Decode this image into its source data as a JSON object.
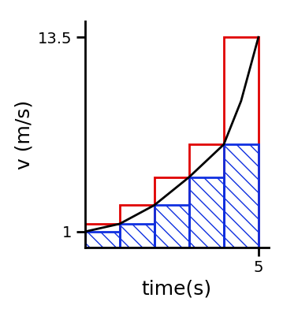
{
  "chart_data": {
    "type": "line",
    "xlabel": "time(s)",
    "ylabel": "v (m/s)",
    "xlim": [
      0,
      5.3
    ],
    "xticks": [
      5
    ],
    "ylim": [
      0,
      14.5
    ],
    "yticks": [
      1,
      13.5
    ],
    "grid": false,
    "series": [
      {
        "type": "bar",
        "color": "#e00000",
        "x": [
          0.5,
          1.5,
          2.5,
          3.5,
          4.5
        ],
        "values": [
          1.5,
          2.7,
          4.5,
          6.6,
          13.5
        ]
      },
      {
        "type": "bar",
        "color": "#1030e0",
        "x": [
          0.5,
          1.5,
          2.5,
          3.5,
          4.5
        ],
        "values": [
          1,
          1.5,
          2.7,
          4.5,
          6.6
        ]
      },
      {
        "type": "line",
        "color": "#000000",
        "x": [
          0,
          1,
          2,
          3,
          4,
          4.5,
          5
        ],
        "values": [
          1,
          1.5,
          2.7,
          4.5,
          6.6,
          9.4,
          13.5
        ]
      }
    ]
  }
}
